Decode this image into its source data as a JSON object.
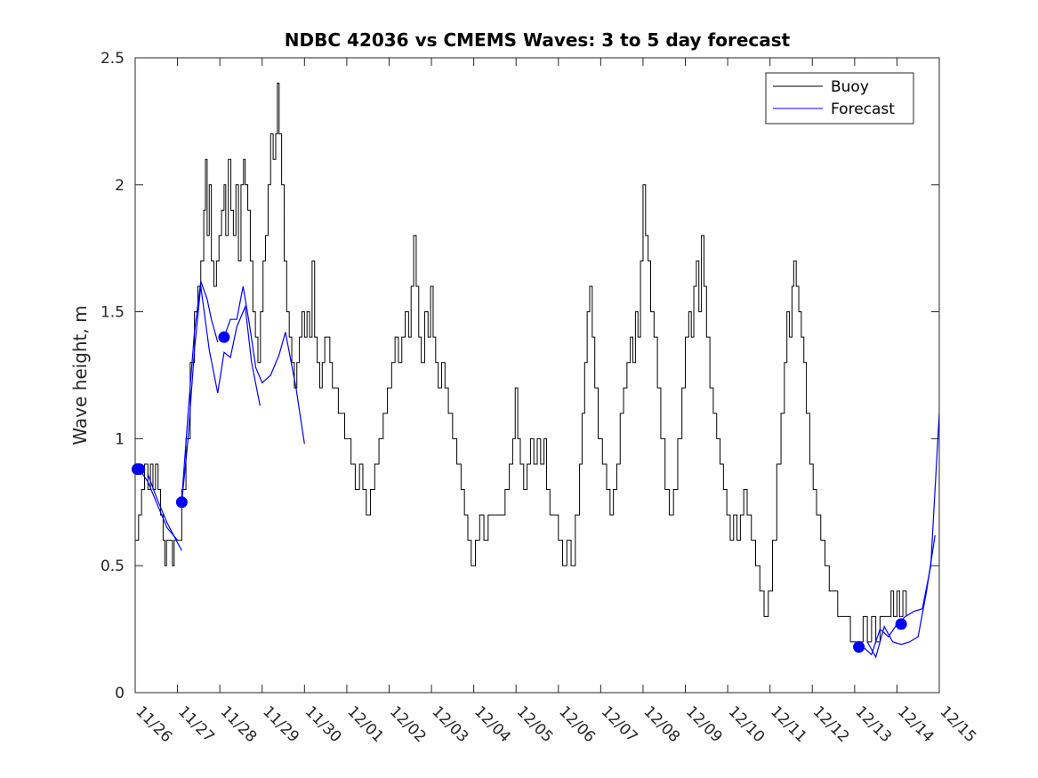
{
  "chart_data": {
    "type": "line",
    "title": "NDBC 42036 vs CMEMS Waves: 3 to 5 day forecast",
    "xlabel": "",
    "ylabel": "Wave height, m",
    "xlim": [
      0,
      19
    ],
    "ylim": [
      0,
      2.5
    ],
    "grid": false,
    "legend_position": "top-right",
    "x_tick_labels": [
      "11/26",
      "11/27",
      "11/28",
      "11/29",
      "11/30",
      "12/01",
      "12/02",
      "12/03",
      "12/04",
      "12/05",
      "12/06",
      "12/07",
      "12/08",
      "12/09",
      "12/10",
      "12/11",
      "12/12",
      "12/13",
      "12/14",
      "12/15"
    ],
    "y_ticks": [
      0,
      0.5,
      1,
      1.5,
      2,
      2.5
    ],
    "y_tick_labels": [
      "0",
      "0.5",
      "1",
      "1.5",
      "2",
      "2.5"
    ],
    "colors": {
      "buoy": "#000000",
      "forecast": "#0000ff",
      "markers": "#0000ff"
    },
    "series": [
      {
        "name": "Buoy",
        "style": "step",
        "points": [
          [
            0.0,
            0.6
          ],
          [
            0.08,
            0.7
          ],
          [
            0.15,
            0.8
          ],
          [
            0.22,
            0.9
          ],
          [
            0.3,
            0.8
          ],
          [
            0.36,
            0.9
          ],
          [
            0.42,
            0.8
          ],
          [
            0.48,
            0.9
          ],
          [
            0.54,
            0.8
          ],
          [
            0.6,
            0.7
          ],
          [
            0.66,
            0.6
          ],
          [
            0.7,
            0.5
          ],
          [
            0.74,
            0.6
          ],
          [
            0.84,
            0.6
          ],
          [
            0.88,
            0.5
          ],
          [
            0.92,
            0.6
          ],
          [
            1.0,
            0.6
          ],
          [
            1.1,
            0.8
          ],
          [
            1.2,
            1.0
          ],
          [
            1.3,
            1.3
          ],
          [
            1.4,
            1.5
          ],
          [
            1.48,
            1.6
          ],
          [
            1.55,
            1.7
          ],
          [
            1.62,
            1.9
          ],
          [
            1.66,
            2.1
          ],
          [
            1.7,
            1.8
          ],
          [
            1.75,
            2.0
          ],
          [
            1.8,
            1.7
          ],
          [
            1.86,
            1.6
          ],
          [
            1.92,
            1.7
          ],
          [
            1.98,
            1.8
          ],
          [
            2.04,
            1.9
          ],
          [
            2.1,
            2.0
          ],
          [
            2.14,
            1.8
          ],
          [
            2.2,
            2.1
          ],
          [
            2.26,
            1.9
          ],
          [
            2.32,
            1.8
          ],
          [
            2.38,
            2.0
          ],
          [
            2.44,
            1.7
          ],
          [
            2.5,
            2.0
          ],
          [
            2.56,
            2.1
          ],
          [
            2.6,
            2.0
          ],
          [
            2.66,
            1.9
          ],
          [
            2.72,
            1.7
          ],
          [
            2.78,
            1.5
          ],
          [
            2.84,
            1.4
          ],
          [
            2.9,
            1.3
          ],
          [
            2.96,
            1.5
          ],
          [
            3.02,
            1.7
          ],
          [
            3.08,
            1.8
          ],
          [
            3.14,
            2.0
          ],
          [
            3.2,
            2.2
          ],
          [
            3.26,
            2.1
          ],
          [
            3.32,
            2.2
          ],
          [
            3.36,
            2.4
          ],
          [
            3.4,
            2.2
          ],
          [
            3.46,
            2.0
          ],
          [
            3.52,
            1.7
          ],
          [
            3.58,
            1.5
          ],
          [
            3.64,
            1.4
          ],
          [
            3.7,
            1.3
          ],
          [
            3.76,
            1.2
          ],
          [
            3.82,
            1.3
          ],
          [
            3.88,
            1.4
          ],
          [
            3.94,
            1.5
          ],
          [
            4.0,
            1.4
          ],
          [
            4.06,
            1.5
          ],
          [
            4.12,
            1.4
          ],
          [
            4.18,
            1.7
          ],
          [
            4.24,
            1.4
          ],
          [
            4.3,
            1.3
          ],
          [
            4.36,
            1.2
          ],
          [
            4.42,
            1.3
          ],
          [
            4.48,
            1.4
          ],
          [
            4.54,
            1.4
          ],
          [
            4.6,
            1.3
          ],
          [
            4.66,
            1.2
          ],
          [
            4.8,
            1.1
          ],
          [
            4.95,
            1.0
          ],
          [
            5.1,
            0.9
          ],
          [
            5.2,
            0.8
          ],
          [
            5.3,
            0.9
          ],
          [
            5.38,
            0.8
          ],
          [
            5.46,
            0.7
          ],
          [
            5.56,
            0.8
          ],
          [
            5.66,
            0.9
          ],
          [
            5.76,
            1.0
          ],
          [
            5.86,
            1.1
          ],
          [
            5.96,
            1.2
          ],
          [
            6.06,
            1.3
          ],
          [
            6.14,
            1.4
          ],
          [
            6.22,
            1.3
          ],
          [
            6.3,
            1.4
          ],
          [
            6.38,
            1.5
          ],
          [
            6.46,
            1.4
          ],
          [
            6.52,
            1.6
          ],
          [
            6.58,
            1.8
          ],
          [
            6.64,
            1.6
          ],
          [
            6.7,
            1.4
          ],
          [
            6.76,
            1.3
          ],
          [
            6.84,
            1.5
          ],
          [
            6.92,
            1.4
          ],
          [
            6.98,
            1.6
          ],
          [
            7.04,
            1.4
          ],
          [
            7.1,
            1.3
          ],
          [
            7.16,
            1.2
          ],
          [
            7.24,
            1.3
          ],
          [
            7.32,
            1.2
          ],
          [
            7.4,
            1.1
          ],
          [
            7.5,
            1.0
          ],
          [
            7.6,
            0.9
          ],
          [
            7.7,
            0.8
          ],
          [
            7.78,
            0.7
          ],
          [
            7.86,
            0.6
          ],
          [
            7.94,
            0.5
          ],
          [
            8.04,
            0.6
          ],
          [
            8.14,
            0.7
          ],
          [
            8.24,
            0.6
          ],
          [
            8.34,
            0.7
          ],
          [
            8.44,
            0.7
          ],
          [
            8.54,
            0.7
          ],
          [
            8.64,
            0.7
          ],
          [
            8.74,
            0.8
          ],
          [
            8.84,
            0.9
          ],
          [
            8.92,
            1.0
          ],
          [
            8.98,
            1.2
          ],
          [
            9.04,
            1.0
          ],
          [
            9.1,
            0.9
          ],
          [
            9.18,
            0.8
          ],
          [
            9.26,
            0.9
          ],
          [
            9.34,
            1.0
          ],
          [
            9.42,
            0.9
          ],
          [
            9.5,
            1.0
          ],
          [
            9.58,
            0.9
          ],
          [
            9.66,
            1.0
          ],
          [
            9.72,
            0.8
          ],
          [
            9.8,
            0.7
          ],
          [
            9.9,
            0.7
          ],
          [
            10.0,
            0.6
          ],
          [
            10.1,
            0.5
          ],
          [
            10.2,
            0.6
          ],
          [
            10.3,
            0.5
          ],
          [
            10.4,
            0.7
          ],
          [
            10.5,
            0.9
          ],
          [
            10.56,
            1.1
          ],
          [
            10.62,
            1.3
          ],
          [
            10.68,
            1.5
          ],
          [
            10.74,
            1.6
          ],
          [
            10.8,
            1.4
          ],
          [
            10.86,
            1.2
          ],
          [
            10.94,
            1.0
          ],
          [
            11.04,
            0.9
          ],
          [
            11.14,
            0.8
          ],
          [
            11.22,
            0.7
          ],
          [
            11.3,
            0.8
          ],
          [
            11.38,
            0.9
          ],
          [
            11.46,
            1.1
          ],
          [
            11.54,
            1.2
          ],
          [
            11.62,
            1.3
          ],
          [
            11.7,
            1.4
          ],
          [
            11.76,
            1.3
          ],
          [
            11.82,
            1.5
          ],
          [
            11.88,
            1.4
          ],
          [
            11.94,
            1.7
          ],
          [
            12.0,
            2.0
          ],
          [
            12.06,
            1.8
          ],
          [
            12.12,
            1.7
          ],
          [
            12.18,
            1.5
          ],
          [
            12.26,
            1.4
          ],
          [
            12.34,
            1.2
          ],
          [
            12.42,
            1.0
          ],
          [
            12.52,
            0.8
          ],
          [
            12.62,
            0.7
          ],
          [
            12.72,
            0.8
          ],
          [
            12.82,
            1.0
          ],
          [
            12.92,
            1.2
          ],
          [
            13.0,
            1.4
          ],
          [
            13.08,
            1.5
          ],
          [
            13.14,
            1.4
          ],
          [
            13.2,
            1.6
          ],
          [
            13.26,
            1.7
          ],
          [
            13.32,
            1.5
          ],
          [
            13.38,
            1.8
          ],
          [
            13.44,
            1.6
          ],
          [
            13.5,
            1.4
          ],
          [
            13.58,
            1.2
          ],
          [
            13.66,
            1.1
          ],
          [
            13.74,
            1.0
          ],
          [
            13.82,
            0.9
          ],
          [
            13.9,
            0.8
          ],
          [
            13.98,
            0.7
          ],
          [
            14.06,
            0.6
          ],
          [
            14.14,
            0.7
          ],
          [
            14.22,
            0.6
          ],
          [
            14.3,
            0.7
          ],
          [
            14.38,
            0.8
          ],
          [
            14.46,
            0.7
          ],
          [
            14.56,
            0.6
          ],
          [
            14.66,
            0.5
          ],
          [
            14.76,
            0.4
          ],
          [
            14.86,
            0.3
          ],
          [
            14.96,
            0.4
          ],
          [
            15.06,
            0.6
          ],
          [
            15.16,
            0.9
          ],
          [
            15.26,
            1.1
          ],
          [
            15.34,
            1.3
          ],
          [
            15.4,
            1.5
          ],
          [
            15.46,
            1.4
          ],
          [
            15.52,
            1.6
          ],
          [
            15.56,
            1.7
          ],
          [
            15.62,
            1.6
          ],
          [
            15.68,
            1.5
          ],
          [
            15.74,
            1.4
          ],
          [
            15.8,
            1.3
          ],
          [
            15.86,
            1.1
          ],
          [
            15.94,
            0.9
          ],
          [
            16.02,
            0.8
          ],
          [
            16.1,
            0.7
          ],
          [
            16.2,
            0.6
          ],
          [
            16.3,
            0.5
          ],
          [
            16.4,
            0.4
          ],
          [
            16.5,
            0.4
          ],
          [
            16.6,
            0.3
          ],
          [
            16.7,
            0.3
          ],
          [
            16.8,
            0.3
          ],
          [
            16.9,
            0.2
          ],
          [
            17.0,
            0.2
          ],
          [
            17.1,
            0.2
          ],
          [
            17.2,
            0.3
          ],
          [
            17.3,
            0.2
          ],
          [
            17.4,
            0.3
          ],
          [
            17.5,
            0.2
          ],
          [
            17.6,
            0.3
          ],
          [
            17.7,
            0.3
          ],
          [
            17.8,
            0.3
          ],
          [
            17.86,
            0.4
          ],
          [
            17.92,
            0.3
          ],
          [
            18.0,
            0.4
          ],
          [
            18.06,
            0.3
          ],
          [
            18.14,
            0.4
          ],
          [
            18.22,
            0.3
          ]
        ]
      },
      {
        "name": "Forecast",
        "style": "line",
        "segments": [
          [
            [
              0.0,
              0.88
            ],
            [
              0.1,
              0.88
            ],
            [
              0.3,
              0.83
            ],
            [
              0.5,
              0.75
            ],
            [
              0.75,
              0.65
            ],
            [
              1.0,
              0.6
            ]
          ],
          [
            [
              0.3,
              0.86
            ],
            [
              0.5,
              0.77
            ],
            [
              0.75,
              0.67
            ],
            [
              1.0,
              0.59
            ],
            [
              1.1,
              0.56
            ]
          ],
          [
            [
              1.1,
              0.76
            ],
            [
              1.25,
              1.1
            ],
            [
              1.4,
              1.42
            ],
            [
              1.55,
              1.62
            ],
            [
              1.7,
              1.55
            ],
            [
              1.8,
              1.47
            ],
            [
              1.95,
              1.38
            ]
          ],
          [
            [
              1.1,
              0.75
            ],
            [
              1.25,
              1.0
            ],
            [
              1.4,
              1.35
            ],
            [
              1.55,
              1.6
            ],
            [
              1.75,
              1.35
            ],
            [
              1.95,
              1.18
            ],
            [
              2.1,
              1.34
            ],
            [
              2.25,
              1.32
            ],
            [
              2.4,
              1.44
            ],
            [
              2.6,
              1.52
            ],
            [
              2.75,
              1.3
            ],
            [
              2.95,
              1.13
            ]
          ],
          [
            [
              2.1,
              1.4
            ],
            [
              2.25,
              1.47
            ],
            [
              2.4,
              1.47
            ],
            [
              2.55,
              1.6
            ],
            [
              2.7,
              1.45
            ],
            [
              2.85,
              1.28
            ],
            [
              3.0,
              1.22
            ],
            [
              3.2,
              1.25
            ],
            [
              3.4,
              1.33
            ],
            [
              3.55,
              1.42
            ],
            [
              3.8,
              1.2
            ],
            [
              4.0,
              0.98
            ]
          ],
          [
            [
              17.2,
              0.18
            ],
            [
              17.4,
              0.15
            ],
            [
              17.6,
              0.25
            ],
            [
              17.8,
              0.22
            ],
            [
              18.0,
              0.27
            ],
            [
              18.2,
              0.3
            ],
            [
              18.4,
              0.32
            ],
            [
              18.6,
              0.33
            ],
            [
              18.8,
              0.5
            ],
            [
              19.0,
              1.1
            ]
          ],
          [
            [
              17.3,
              0.2
            ],
            [
              17.5,
              0.14
            ],
            [
              17.7,
              0.26
            ],
            [
              17.9,
              0.2
            ],
            [
              18.1,
              0.19
            ],
            [
              18.3,
              0.2
            ],
            [
              18.5,
              0.22
            ],
            [
              18.7,
              0.4
            ],
            [
              18.9,
              0.62
            ]
          ]
        ]
      }
    ],
    "markers": [
      {
        "x": 0.05,
        "y": 0.88
      },
      {
        "x": 0.1,
        "y": 0.88
      },
      {
        "x": 1.1,
        "y": 0.75
      },
      {
        "x": 2.1,
        "y": 1.4
      },
      {
        "x": 17.1,
        "y": 0.18
      },
      {
        "x": 18.1,
        "y": 0.27
      }
    ]
  }
}
